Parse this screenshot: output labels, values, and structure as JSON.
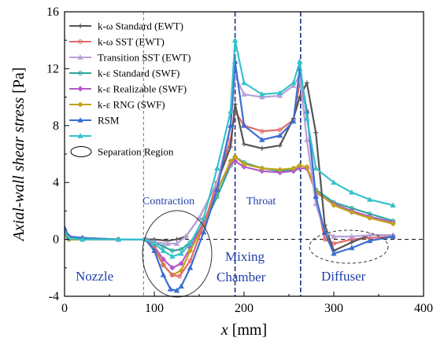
{
  "chart_data": {
    "type": "line",
    "xlabel": "x [mm]",
    "ylabel": "Axial-wall shear stress [Pa]",
    "xlim": [
      0,
      400
    ],
    "ylim": [
      -4,
      16
    ],
    "x_ticks": [
      0,
      100,
      200,
      300,
      400
    ],
    "y_ticks": [
      -4,
      0,
      4,
      8,
      12,
      16
    ],
    "legend_position": "top-left",
    "grid": false,
    "zero_line": 0,
    "region_dividers_x": [
      88,
      190,
      263
    ],
    "region_labels": [
      "Nozzle",
      "Contraction",
      "Mixing Chamber",
      "Throat",
      "Diffuser"
    ],
    "separation_legend_label": "Separation Region",
    "series": [
      {
        "name": "k-ω Standard (EWT)",
        "color": "#555555",
        "marker": "plus",
        "x": [
          0,
          5,
          20,
          60,
          90,
          100,
          115,
          125,
          135,
          150,
          170,
          185,
          190,
          200,
          220,
          240,
          255,
          262,
          270,
          280,
          290,
          300,
          320,
          340,
          366
        ],
        "y": [
          0.6,
          0.2,
          0.1,
          0,
          0,
          0,
          -0.1,
          0,
          0.2,
          1.5,
          4,
          6.5,
          9.5,
          6.7,
          6.4,
          6.6,
          8.5,
          10,
          11,
          7.5,
          1,
          -0.8,
          -0.2,
          0.3,
          0.3
        ]
      },
      {
        "name": "k-ω SST (EWT)",
        "color": "#e06a6a",
        "marker": "circle",
        "x": [
          0,
          5,
          20,
          60,
          90,
          100,
          110,
          120,
          128,
          140,
          155,
          170,
          185,
          190,
          200,
          220,
          240,
          255,
          262,
          270,
          280,
          290,
          300,
          320,
          340,
          366
        ],
        "y": [
          0.6,
          0.2,
          0.1,
          0,
          0,
          -0.5,
          -1.8,
          -2.5,
          -2.6,
          -1.5,
          1,
          4,
          7,
          9,
          8,
          7.6,
          7.7,
          8.4,
          11,
          9,
          3,
          0,
          -0.3,
          0,
          0.1,
          0.2
        ]
      },
      {
        "name": "Transition SST (EWT)",
        "color": "#b9a0d6",
        "marker": "triangle",
        "x": [
          0,
          5,
          20,
          60,
          90,
          100,
          115,
          125,
          135,
          150,
          170,
          185,
          190,
          200,
          220,
          240,
          255,
          262,
          270,
          280,
          290,
          300,
          320,
          340,
          366
        ],
        "y": [
          0.6,
          0.2,
          0.1,
          0,
          0,
          -0.2,
          -0.3,
          -0.3,
          0.2,
          1.5,
          4,
          8,
          11.5,
          10.2,
          10,
          10.1,
          10.8,
          11.5,
          7,
          2.5,
          0.5,
          0.2,
          0.2,
          0.3,
          0.3
        ]
      },
      {
        "name": "k-ε Standard (SWF)",
        "color": "#2aa79b",
        "marker": "circle",
        "x": [
          0,
          5,
          20,
          60,
          90,
          100,
          110,
          120,
          130,
          140,
          155,
          170,
          185,
          190,
          200,
          220,
          240,
          255,
          262,
          270,
          280,
          300,
          320,
          340,
          366
        ],
        "y": [
          0.3,
          0,
          0,
          0,
          0,
          -0.2,
          -0.5,
          -0.8,
          -0.7,
          -0.2,
          1,
          3,
          5.2,
          5.8,
          5.4,
          5,
          4.8,
          4.9,
          5,
          5,
          3.5,
          2.6,
          2.2,
          1.8,
          1.3
        ]
      },
      {
        "name": "k-ε Realizable (SWF)",
        "color": "#b45ac8",
        "marker": "diamond",
        "x": [
          0,
          5,
          20,
          60,
          90,
          100,
          110,
          120,
          130,
          140,
          155,
          170,
          185,
          190,
          200,
          220,
          240,
          255,
          262,
          270,
          280,
          300,
          320,
          340,
          366
        ],
        "y": [
          0.3,
          0,
          0,
          0,
          0,
          -0.5,
          -1.4,
          -2,
          -1.7,
          -0.6,
          1.2,
          3.5,
          5.3,
          5.5,
          5.1,
          4.8,
          4.7,
          4.8,
          5,
          5,
          3.3,
          2.5,
          2,
          1.6,
          1.2
        ]
      },
      {
        "name": "k-ε RNG (SWF)",
        "color": "#c4a21c",
        "marker": "diamond",
        "x": [
          0,
          5,
          20,
          60,
          90,
          100,
          110,
          120,
          130,
          140,
          155,
          170,
          185,
          190,
          200,
          220,
          240,
          255,
          262,
          270,
          280,
          300,
          320,
          340,
          366
        ],
        "y": [
          0.3,
          0,
          0,
          0,
          0,
          -0.7,
          -1.8,
          -2.5,
          -2.2,
          -0.8,
          1,
          3.4,
          5.5,
          5.8,
          5.3,
          5,
          4.9,
          5,
          5.2,
          5.1,
          3.4,
          2.4,
          1.9,
          1.5,
          1.1
        ]
      },
      {
        "name": "RSM",
        "color": "#3a6fd0",
        "marker": "triangle",
        "x": [
          0,
          5,
          20,
          60,
          90,
          100,
          110,
          118,
          125,
          130,
          140,
          155,
          170,
          185,
          190,
          200,
          220,
          240,
          255,
          262,
          270,
          280,
          290,
          300,
          320,
          340,
          366
        ],
        "y": [
          0.8,
          0.2,
          0.1,
          0,
          0,
          -0.8,
          -2.5,
          -3.5,
          -3.6,
          -3.3,
          -2,
          0.5,
          3.5,
          8,
          12.5,
          8,
          7,
          7.3,
          8.3,
          12,
          9,
          3,
          0.5,
          -1,
          -0.6,
          -0.1,
          0.2
        ]
      },
      {
        "name": "",
        "color": "#35c2cc",
        "marker": "triangle",
        "x": [
          0,
          5,
          20,
          60,
          90,
          100,
          110,
          120,
          130,
          140,
          155,
          170,
          185,
          190,
          200,
          220,
          240,
          255,
          262,
          270,
          280,
          300,
          320,
          340,
          366
        ],
        "y": [
          0.5,
          0.1,
          0,
          0,
          0,
          -0.3,
          -0.8,
          -1.2,
          -1,
          -0.3,
          1.5,
          5,
          9,
          14,
          11,
          10.2,
          10.3,
          11,
          12.5,
          8.5,
          5,
          4,
          3.3,
          2.8,
          2.4
        ]
      }
    ]
  }
}
